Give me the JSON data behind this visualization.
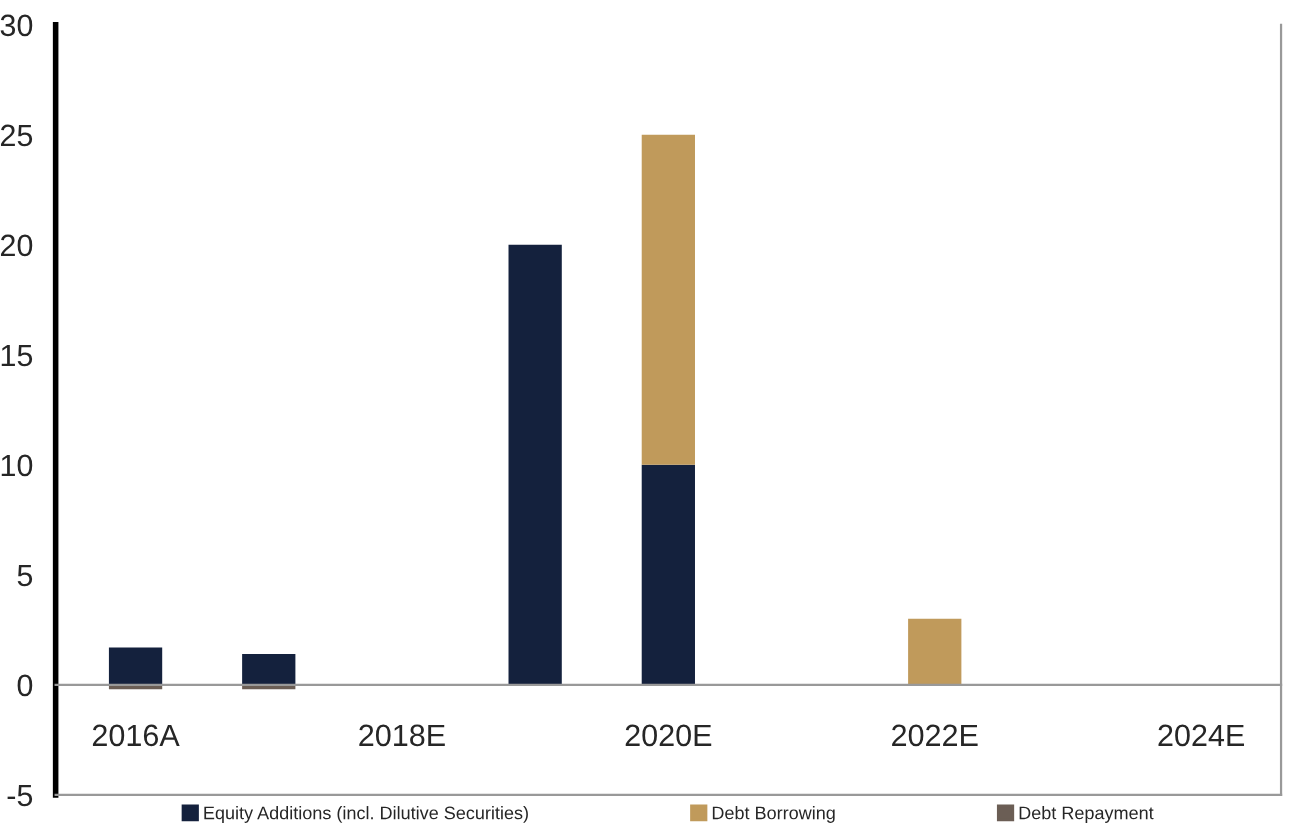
{
  "chart_data": {
    "type": "bar",
    "stacked": true,
    "categories": [
      "2016A",
      null,
      "2018E",
      null,
      "2020E",
      null,
      "2022E",
      null,
      "2024E"
    ],
    "series": [
      {
        "name": "Equity Additions (incl. Dilutive Securities)",
        "color": "#14213d",
        "values": [
          1.7,
          1.4,
          0,
          20,
          10,
          0,
          0,
          0,
          0
        ]
      },
      {
        "name": "Debt Borrowing",
        "color": "#c09a5b",
        "values": [
          0,
          0,
          0,
          0,
          15,
          0,
          3,
          0,
          0
        ]
      },
      {
        "name": "Debt Repayment",
        "color": "#6b5e55",
        "values": [
          -0.2,
          -0.2,
          0,
          0,
          0,
          0,
          0,
          0,
          0
        ]
      }
    ],
    "ylim": [
      -5,
      30
    ],
    "yticks": [
      -5,
      0,
      5,
      10,
      15,
      20,
      25,
      30
    ],
    "grid": false,
    "legend": "bottom"
  }
}
